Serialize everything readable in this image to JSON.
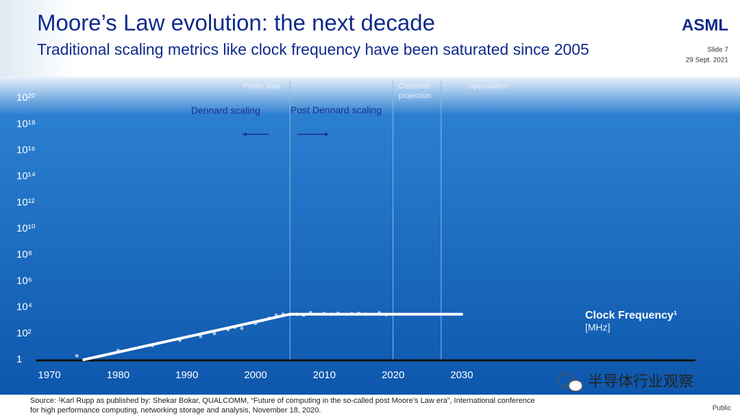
{
  "header": {
    "title": "Moore’s Law evolution: the next decade",
    "subtitle": "Traditional scaling metrics like clock frequency have been saturated since 2005",
    "logo": "ASML",
    "slide": "Slide 7",
    "date": "29 Sept. 2021"
  },
  "chart_data": {
    "type": "line",
    "log_y": true,
    "xlim": [
      1968,
      2064
    ],
    "xticks": [
      1970,
      1980,
      1990,
      2000,
      2010,
      2020,
      2030
    ],
    "ylim": [
      1,
      1e+21
    ],
    "yticks": [
      1,
      {
        "value": 100,
        "label": "10²"
      },
      {
        "value": 10000,
        "label": "10⁴"
      },
      {
        "value": 1000000,
        "label": "10⁶"
      },
      {
        "value": 100000000,
        "label": "10⁸"
      },
      {
        "value": 10000000000,
        "label": "10¹⁰"
      },
      {
        "value": 1000000000000,
        "label": "10¹²"
      },
      {
        "value": 100000000000000,
        "label": "10¹⁴"
      },
      {
        "value": 10000000000000000,
        "label": "10¹⁶"
      },
      {
        "value": 1000000000000000000,
        "label": "10¹⁸"
      },
      {
        "value": 1e+20,
        "label": "10²⁰"
      }
    ],
    "series": [
      {
        "name": "Clock Frequency¹",
        "unit": "[MHz]",
        "color": "#ffffff",
        "x": [
          1975,
          2005,
          2030
        ],
        "values": [
          1,
          3000,
          3000
        ]
      }
    ],
    "points": {
      "color": "#c9d6ea",
      "x": [
        1974,
        1980,
        1985,
        1989,
        1992,
        1994,
        1996,
        1997,
        1998,
        2000,
        2001,
        2002,
        2003,
        2004,
        2005,
        2006,
        2007,
        2008,
        2010,
        2011,
        2012,
        2014,
        2015,
        2016,
        2018,
        2019
      ],
      "values": [
        2,
        5,
        12,
        30,
        60,
        100,
        200,
        300,
        250,
        600,
        1000,
        1500,
        2500,
        3000,
        2800,
        3000,
        2500,
        4000,
        3400,
        3000,
        3600,
        3300,
        3500,
        3000,
        3800,
        2800
      ]
    },
    "regions": [
      {
        "x": 2005,
        "label": "Public data"
      },
      {
        "x": 2020,
        "label": "Customer projection"
      },
      {
        "x": 2027,
        "label": "Speculation"
      }
    ],
    "annotations": {
      "dennard": "Dennard scaling",
      "post_dennard": "Post Dennard scaling"
    }
  },
  "footer": {
    "source": [
      "Source: ¹Karl Rupp as published by: Shekar Bokar, QUALCOMM, “Future of computing in the so-called post Moore’s Law era”, International conference",
      "for high performance computing, networking storage and analysis,  November 18, 2020."
    ],
    "classification": "Public",
    "watermark": "半导体行业观察"
  }
}
